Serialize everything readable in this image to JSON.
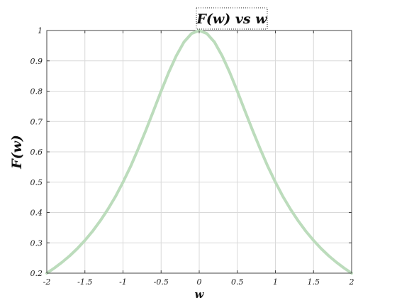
{
  "chart_data": {
    "type": "line",
    "title": "F(w) vs w",
    "xlabel": "w",
    "ylabel": "F(w)",
    "xlim": [
      -2,
      2
    ],
    "ylim": [
      0.2,
      1
    ],
    "grid": true,
    "xticks": [
      -2,
      -1.5,
      -1,
      -0.5,
      0,
      0.5,
      1,
      1.5,
      2
    ],
    "xtick_labels": [
      "-2",
      "-1.5",
      "-1",
      "-0.5",
      "0",
      "0.5",
      "1",
      "1.5",
      "2"
    ],
    "yticks": [
      0.2,
      0.3,
      0.4,
      0.5,
      0.6,
      0.7,
      0.8,
      0.9,
      1
    ],
    "ytick_labels": [
      "0.2",
      "0.3",
      "0.4",
      "0.5",
      "0.6",
      "0.7",
      "0.8",
      "0.9",
      "1"
    ],
    "series": [
      {
        "color": "#bcdcbc",
        "x": [
          -2,
          -1.9,
          -1.8,
          -1.7,
          -1.6,
          -1.5,
          -1.4,
          -1.3,
          -1.2,
          -1.1,
          -1,
          -0.9,
          -0.8,
          -0.7,
          -0.6,
          -0.5,
          -0.4,
          -0.3,
          -0.2,
          -0.1,
          0,
          0.1,
          0.2,
          0.3,
          0.4,
          0.5,
          0.6,
          0.7,
          0.8,
          0.9,
          1,
          1.1,
          1.2,
          1.3,
          1.4,
          1.5,
          1.6,
          1.7,
          1.8,
          1.9,
          2
        ],
        "y": [
          0.2,
          0.217,
          0.236,
          0.257,
          0.281,
          0.308,
          0.338,
          0.372,
          0.41,
          0.452,
          0.5,
          0.552,
          0.61,
          0.671,
          0.735,
          0.8,
          0.862,
          0.917,
          0.962,
          0.99,
          1,
          0.99,
          0.962,
          0.917,
          0.862,
          0.8,
          0.735,
          0.671,
          0.61,
          0.552,
          0.5,
          0.452,
          0.41,
          0.372,
          0.338,
          0.308,
          0.281,
          0.257,
          0.236,
          0.217,
          0.2
        ]
      }
    ]
  }
}
